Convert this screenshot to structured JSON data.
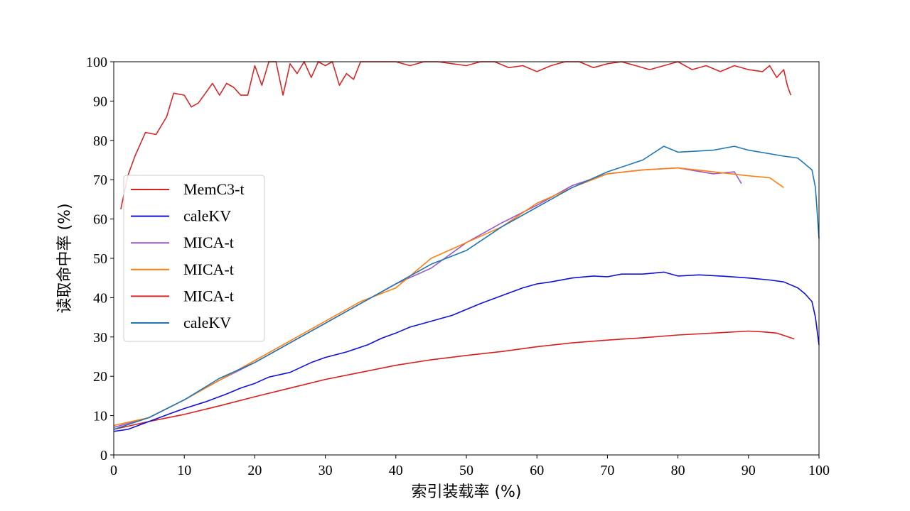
{
  "chart_data": {
    "type": "line",
    "title": "",
    "xlabel": "索引装载率 (%)",
    "ylabel": "读取命中率 (%)",
    "xlim": [
      0,
      100
    ],
    "ylim": [
      0,
      100
    ],
    "xticks": [
      "0",
      "10",
      "20",
      "30",
      "40",
      "50",
      "60",
      "70",
      "80",
      "90",
      "100"
    ],
    "yticks": [
      "0",
      "10",
      "20",
      "30",
      "40",
      "50",
      "60",
      "70",
      "80",
      "90",
      "100"
    ],
    "grid": false,
    "legend_position": "center-left",
    "series": [
      {
        "name": "MemC3-t",
        "color": "#d62020",
        "x": [
          0,
          5,
          10,
          15,
          20,
          25,
          30,
          35,
          40,
          45,
          50,
          55,
          60,
          65,
          70,
          75,
          80,
          85,
          90,
          92,
          94,
          96.5
        ],
        "y": [
          6.5,
          8.5,
          10.3,
          12.5,
          14.8,
          17,
          19.2,
          21,
          22.8,
          24.2,
          25.3,
          26.3,
          27.5,
          28.5,
          29.2,
          29.8,
          30.5,
          31,
          31.5,
          31.3,
          31,
          29.5
        ]
      },
      {
        "name": "caleKV",
        "color": "#1010d8",
        "x": [
          0,
          2,
          5,
          8,
          10,
          13,
          16,
          18,
          20,
          22,
          25,
          28,
          30,
          33,
          36,
          38,
          40,
          42,
          45,
          48,
          50,
          52,
          55,
          58,
          60,
          62,
          65,
          68,
          70,
          72,
          75,
          78,
          80,
          83,
          86,
          90,
          93,
          95,
          97,
          98,
          99,
          99.5,
          100
        ],
        "y": [
          6,
          6.5,
          8.5,
          10.5,
          11.8,
          13.5,
          15.5,
          17,
          18.2,
          19.8,
          21,
          23.5,
          24.8,
          26.2,
          28,
          29.7,
          31,
          32.5,
          34,
          35.5,
          37,
          38.5,
          40.5,
          42.5,
          43.5,
          44,
          45,
          45.5,
          45.3,
          46,
          46,
          46.5,
          45.5,
          45.8,
          45.5,
          45,
          44.5,
          44,
          42.5,
          41,
          39,
          35,
          28
        ]
      },
      {
        "name": "MICA-t",
        "color": "#9b59c6",
        "x": [
          0,
          5,
          10,
          15,
          20,
          25,
          30,
          35,
          40,
          45,
          50,
          55,
          60,
          65,
          70,
          75,
          80,
          85,
          88,
          89
        ],
        "y": [
          7,
          9.5,
          14,
          19,
          23.5,
          28.5,
          33.5,
          38.5,
          43.5,
          47.5,
          54,
          59,
          63.5,
          68.5,
          71.5,
          72.5,
          73,
          71.5,
          72,
          69
        ]
      },
      {
        "name": "MICA-t",
        "color": "#ff7f0e",
        "x": [
          0,
          5,
          10,
          15,
          20,
          25,
          30,
          35,
          40,
          45,
          50,
          55,
          60,
          65,
          70,
          75,
          80,
          85,
          90,
          93,
          95
        ],
        "y": [
          7.5,
          9.5,
          14,
          19,
          24,
          29,
          34,
          39,
          42.5,
          50,
          54,
          58,
          64,
          68,
          71.5,
          72.5,
          73,
          72,
          71,
          70.5,
          68
        ]
      },
      {
        "name": "MICA-t",
        "color": "#d62728",
        "x": [
          1,
          2,
          3,
          4.5,
          6,
          7.5,
          8.5,
          10,
          11,
          12,
          14,
          15,
          16,
          17,
          18,
          19,
          20,
          21,
          22,
          23,
          24,
          25,
          26,
          27,
          28,
          29,
          30,
          31,
          32,
          33,
          34,
          35,
          36,
          38,
          40,
          42,
          44,
          46,
          48,
          50,
          52,
          54,
          56,
          58,
          60,
          62,
          64,
          66,
          68,
          70,
          72,
          74,
          76,
          78,
          80,
          82,
          84,
          86,
          88,
          90,
          92,
          93,
          94,
          95,
          95.5,
          96
        ],
        "y": [
          62.5,
          71,
          76,
          82,
          81.5,
          86,
          92,
          91.5,
          88.5,
          89.5,
          94.5,
          91.5,
          94.5,
          93.5,
          91.5,
          91.5,
          99,
          94,
          100,
          100,
          91.5,
          99.5,
          97,
          100,
          96,
          100,
          99,
          100,
          94,
          97,
          95.5,
          100,
          100,
          100,
          100,
          99,
          100,
          100,
          99.5,
          99,
          100,
          100,
          98.5,
          99,
          97.5,
          99,
          100,
          100,
          98.5,
          99.5,
          100,
          99,
          98,
          99,
          100,
          98,
          99,
          97.5,
          99,
          98,
          97.5,
          99,
          96,
          98,
          94,
          91.5
        ]
      },
      {
        "name": "caleKV",
        "color": "#1f77b4",
        "x": [
          0,
          5,
          10,
          15,
          20,
          25,
          30,
          35,
          40,
          45,
          50,
          55,
          60,
          65,
          70,
          75,
          78,
          80,
          85,
          88,
          90,
          95,
          97,
          98,
          99,
          99.5,
          100
        ],
        "y": [
          6.5,
          9.5,
          14,
          19.5,
          23.5,
          28.5,
          33.5,
          38.5,
          43.5,
          48.5,
          52,
          58,
          63,
          68,
          72,
          75,
          78.5,
          77,
          77.5,
          78.5,
          77.5,
          76,
          75.5,
          74,
          72.5,
          68,
          55
        ]
      }
    ]
  }
}
